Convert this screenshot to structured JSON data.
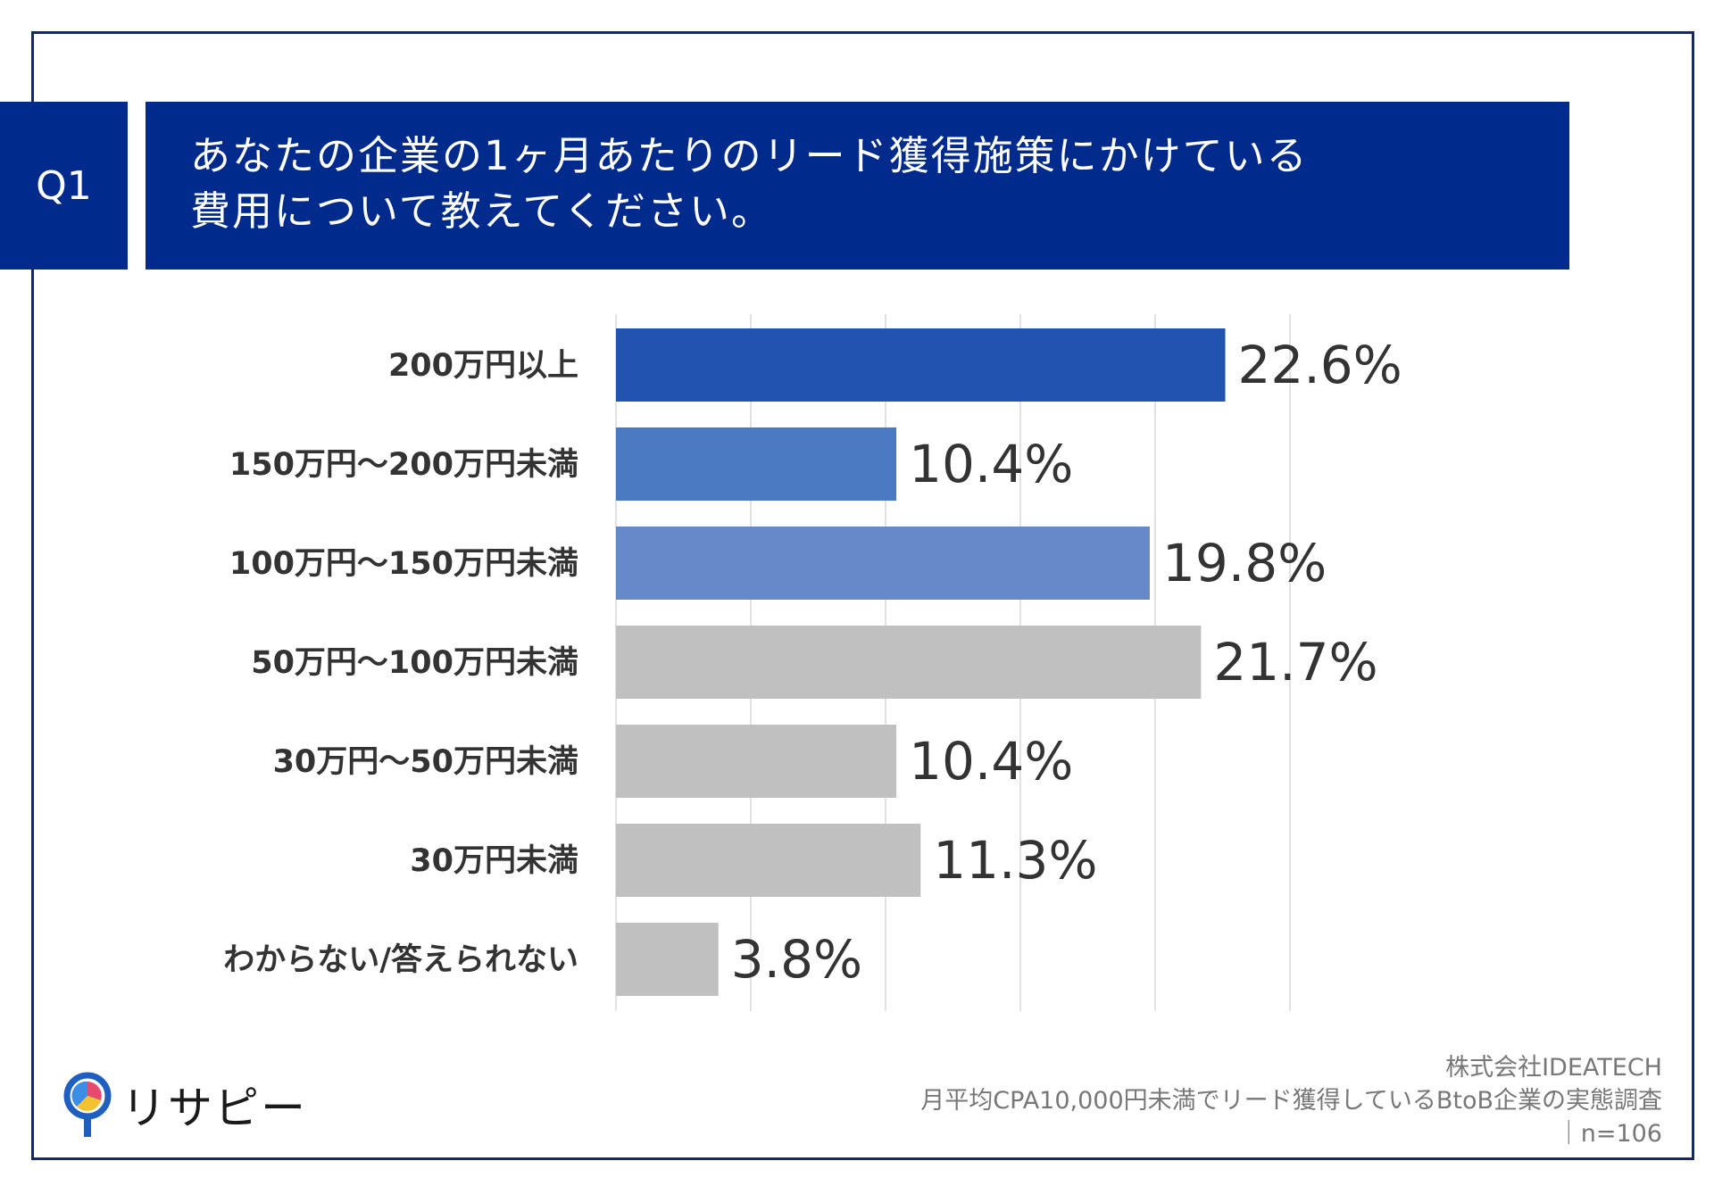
{
  "header": {
    "badge": "Q1",
    "title_line1": "あなたの企業の1ヶ月あたりのリード獲得施策にかけている",
    "title_line2": "費用について教えてください。"
  },
  "colors": {
    "navy": "#002a8c",
    "blue_dark": "#2353b1",
    "blue_mid": "#4a78c1",
    "blue_light": "#6589c9",
    "gray": "#c0c0c0",
    "grid": "#d9d9d9"
  },
  "chart_data": {
    "type": "bar",
    "orientation": "horizontal",
    "categories": [
      "200万円以上",
      "150万円〜200万円未満",
      "100万円〜150万円未満",
      "50万円〜100万円未満",
      "30万円〜50万円未満",
      "30万円未満",
      "わからない/答えられない"
    ],
    "values": [
      22.6,
      10.4,
      19.8,
      21.7,
      10.4,
      11.3,
      3.8
    ],
    "labels": [
      "22.6%",
      "10.4%",
      "19.8%",
      "21.7%",
      "10.4%",
      "11.3%",
      "3.8%"
    ],
    "bar_colors": [
      "#2353b1",
      "#4a78c1",
      "#6589c9",
      "#c0c0c0",
      "#c0c0c0",
      "#c0c0c0",
      "#c0c0c0"
    ],
    "xlim": [
      0,
      25
    ],
    "grid": true,
    "title": "",
    "xlabel": "",
    "ylabel": ""
  },
  "source": {
    "line1": "株式会社IDEATECH",
    "line2": "月平均CPA10,000円未満でリード獲得しているBtoB企業の実態調査",
    "line3": "｜n=106"
  },
  "logo": {
    "text": "リサピー"
  }
}
